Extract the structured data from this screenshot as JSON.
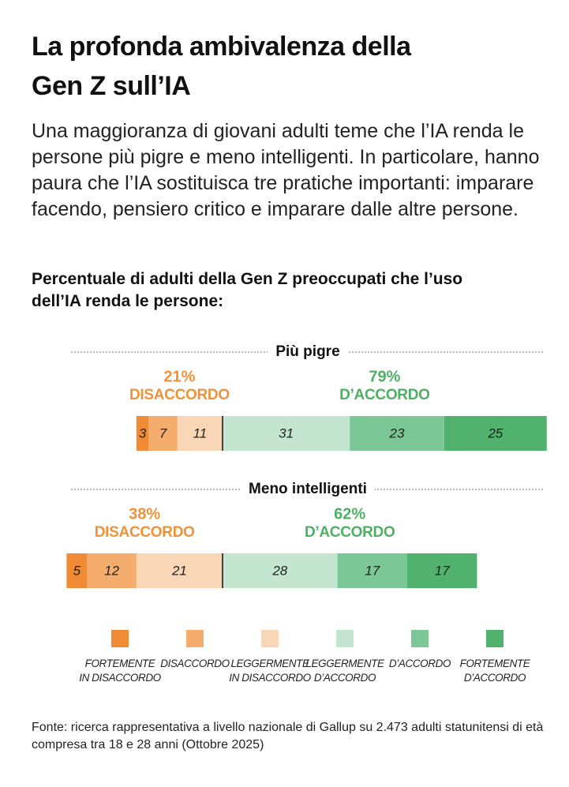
{
  "title": "La profonda ambivalenza della Gen Z sull’IA",
  "subtitle": "Una maggioranza di giovani adulti teme che l’IA renda le persone più pigre e meno intelligenti. In particolare, hanno paura che l’IA sostituisca tre pratiche importanti: imparare facendo, pensiero critico e imparare dalle altre persone.",
  "chart_data": {
    "type": "diverging_bar",
    "title": "Percentuale di adulti della Gen Z preoccupati che l’uso dell’IA renda le persone:",
    "categories": [
      "Più pigre",
      "Meno intelligenti"
    ],
    "series": [
      {
        "name": "FORTEMENTE IN DISACCORDO",
        "color": "#f08a33",
        "side": "disagree",
        "values": [
          3,
          5
        ]
      },
      {
        "name": "DISACCORDO",
        "color": "#f4ad6c",
        "side": "disagree",
        "values": [
          7,
          12
        ]
      },
      {
        "name": "LEGGERMENTE IN DISACCORDO",
        "color": "#f9d6b5",
        "side": "disagree",
        "values": [
          11,
          21
        ]
      },
      {
        "name": "LEGGERMENTE D’ACCORDO",
        "color": "#c4e6d1",
        "side": "agree",
        "values": [
          31,
          28
        ]
      },
      {
        "name": "D’ACCORDO",
        "color": "#7bc795",
        "side": "agree",
        "values": [
          23,
          17
        ]
      },
      {
        "name": "FORTEMENTE D’ACCORDO",
        "color": "#50b26c",
        "side": "agree",
        "values": [
          25,
          17
        ]
      }
    ],
    "totals": {
      "disagree": {
        "name": "DISACCORDO",
        "color": "#f0923a",
        "values": [
          21,
          38
        ],
        "value_labels": [
          "21%",
          "38%"
        ]
      },
      "agree": {
        "name": "D’ACCORDO",
        "color": "#4faf63",
        "values": [
          79,
          62
        ],
        "value_labels": [
          "79%",
          "62%"
        ]
      }
    }
  },
  "source": "Fonte: ricerca rappresentativa a livello nazionale di Gallup su 2.473 adulti statunitensi di età compresa tra 18 e 28 anni (Ottobre 2025)"
}
